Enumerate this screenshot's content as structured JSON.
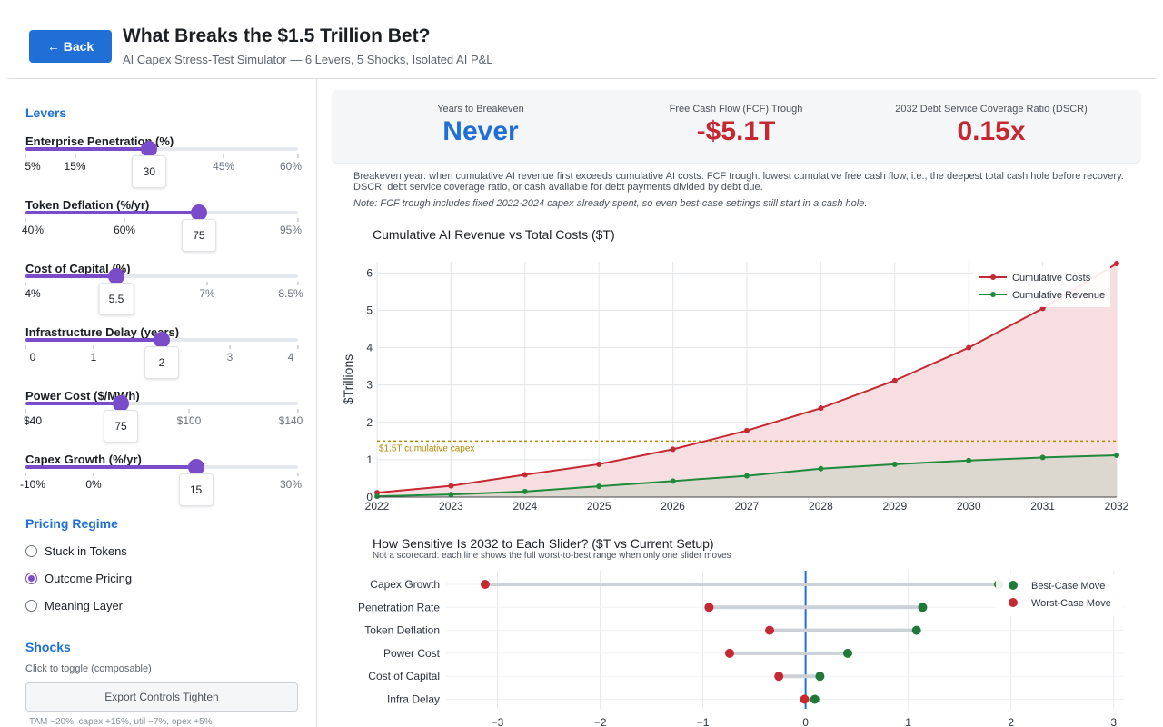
{
  "header": {
    "back_label": "← Back",
    "title": "What Breaks the $1.5 Trillion Bet?",
    "subtitle": "AI Capex Stress-Test Simulator — 6 Levers, 5 Shocks, Isolated AI P&L"
  },
  "sidebar": {
    "levers_title": "Levers",
    "levers": [
      {
        "label": "Enterprise Penetration (%)",
        "min": 5,
        "max": 60,
        "value": 30,
        "value_label": "30",
        "ticks": [
          {
            "label": "5%",
            "value": 5
          },
          {
            "label": "15%",
            "value": 15
          },
          {
            "label": "45%",
            "value": 45
          },
          {
            "label": "60%",
            "value": 60
          }
        ]
      },
      {
        "label": "Token Deflation (%/yr)",
        "min": 40,
        "max": 95,
        "value": 75,
        "value_label": "75",
        "ticks": [
          {
            "label": "40%",
            "value": 40
          },
          {
            "label": "60%",
            "value": 60
          },
          {
            "label": "95%",
            "value": 95
          }
        ]
      },
      {
        "label": "Cost of Capital (%)",
        "min": 4,
        "max": 8.5,
        "value": 5.5,
        "value_label": "5.5",
        "ticks": [
          {
            "label": "4%",
            "value": 4
          },
          {
            "label": "7%",
            "value": 7
          },
          {
            "label": "8.5%",
            "value": 8.5
          }
        ]
      },
      {
        "label": "Infrastructure Delay (years)",
        "min": 0,
        "max": 4,
        "value": 2,
        "value_label": "2",
        "ticks": [
          {
            "label": "0",
            "value": 0
          },
          {
            "label": "1",
            "value": 1
          },
          {
            "label": "3",
            "value": 3
          },
          {
            "label": "4",
            "value": 4
          }
        ]
      },
      {
        "label": "Power Cost ($/MWh)",
        "min": 40,
        "max": 140,
        "value": 75,
        "value_label": "75",
        "ticks": [
          {
            "label": "$40",
            "value": 40
          },
          {
            "label": "$100",
            "value": 100
          },
          {
            "label": "$140",
            "value": 140
          }
        ]
      },
      {
        "label": "Capex Growth (%/yr)",
        "min": -10,
        "max": 30,
        "value": 15,
        "value_label": "15",
        "ticks": [
          {
            "label": "-10%",
            "value": -10
          },
          {
            "label": "0%",
            "value": 0
          },
          {
            "label": "30%",
            "value": 30
          }
        ]
      }
    ],
    "pricing_title": "Pricing Regime",
    "pricing_options": [
      {
        "label": "Stuck in Tokens",
        "checked": false
      },
      {
        "label": "Outcome Pricing",
        "checked": true
      },
      {
        "label": "Meaning Layer",
        "checked": false
      }
    ],
    "shocks_title": "Shocks",
    "shocks_hint": "Click to toggle (composable)",
    "shock_button_label": "Export Controls Tighten",
    "shock_button_desc": "TAM −20%, capex +15%, util −7%, opex +5%"
  },
  "kpis": [
    {
      "label": "Years to Breakeven",
      "value": "Never",
      "color": "#1f6fd6"
    },
    {
      "label": "Free Cash Flow (FCF) Trough",
      "value": "-$5.1T",
      "color": "#c62832"
    },
    {
      "label": "2032 Debt Service Coverage Ratio (DSCR)",
      "value": "0.15x",
      "color": "#c62832"
    }
  ],
  "notes": {
    "definitions": "Breakeven year: when cumulative AI revenue first exceeds cumulative AI costs.    FCF trough: lowest cumulative free cash flow, i.e., the deepest total cash hole before recovery.    DSCR: debt service coverage ratio, or cash available for debt payments divided by debt due.",
    "fcf_note": "Note: FCF trough includes fixed 2022-2024 capex already spent, so even best-case settings still start in a cash hole."
  },
  "chart_data": [
    {
      "type": "line",
      "title": "Cumulative AI Revenue vs Total Costs ($T)",
      "ylabel": "$Trillions",
      "xlabel": "",
      "x": [
        2022,
        2023,
        2024,
        2025,
        2026,
        2027,
        2028,
        2029,
        2030,
        2031,
        2032
      ],
      "xlim": [
        2022,
        2032
      ],
      "ylim": [
        0,
        6.3
      ],
      "yticks": [
        0,
        1,
        2,
        3,
        4,
        5,
        6
      ],
      "grid": true,
      "legend_position": "top-right",
      "series": [
        {
          "name": "Cumulative Costs",
          "color": "#c62832",
          "fill": "#f7dfe1",
          "values": [
            0.12,
            0.3,
            0.6,
            0.88,
            1.28,
            1.78,
            2.38,
            3.12,
            4.0,
            5.05,
            6.25
          ]
        },
        {
          "name": "Cumulative Revenue",
          "color": "#1f8a3b",
          "fill": "#dcd8d0",
          "values": [
            0.02,
            0.07,
            0.15,
            0.29,
            0.43,
            0.57,
            0.76,
            0.88,
            0.98,
            1.06,
            1.12
          ]
        }
      ],
      "reference_line": {
        "value": 1.5,
        "label": "$1.5T cumulative capex",
        "color": "#b58900"
      }
    },
    {
      "type": "dumbbell",
      "title": "How Sensitive Is 2032 to Each Slider? ($T vs Current Setup)",
      "subtitle": "Not a scorecard: each line shows the full worst-to-best range when only one slider moves",
      "categories": [
        "Capex Growth",
        "Penetration Rate",
        "Token Deflation",
        "Power Cost",
        "Cost of Capital",
        "Infra Delay"
      ],
      "worst": [
        -3.12,
        -0.94,
        -0.35,
        -0.74,
        -0.26,
        -0.01
      ],
      "best": [
        1.88,
        1.14,
        1.08,
        0.41,
        0.14,
        0.09
      ],
      "xlim": [
        -3.5,
        3.1
      ],
      "xticks": [
        -3,
        -2,
        -1,
        0,
        1,
        2,
        3
      ],
      "best_label": "Best-Case Move",
      "worst_label": "Worst-Case Move",
      "best_color": "#1f7a3a",
      "worst_color": "#c62832",
      "legend_position": "top-right"
    }
  ]
}
